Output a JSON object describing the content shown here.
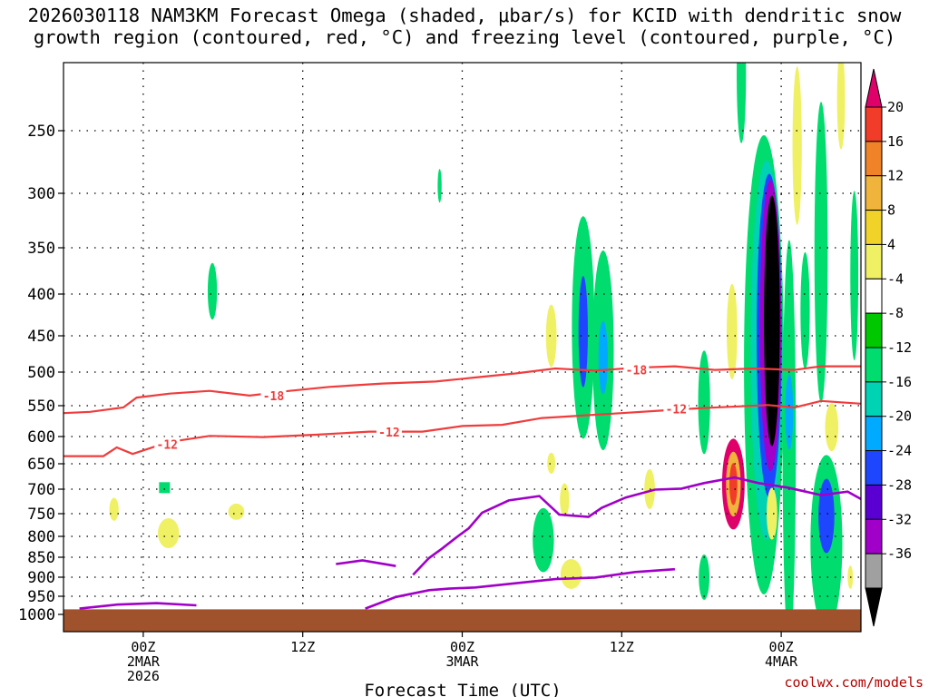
{
  "title_line1": "2026030118 NAM3KM Forecast Omega (shaded, μbar/s) for KCID with dendritic snow",
  "title_line2": "growth region (contoured, red, °C) and freezing level (contoured, purple, °C)",
  "credit": "coolwx.com/models",
  "chart_data": {
    "type": "heatmap",
    "xlabel": "Forecast Time (UTC)",
    "ylabel": "",
    "x_tick_labels": [
      {
        "hour": 6,
        "lines": [
          "00Z",
          "2MAR",
          "2026"
        ]
      },
      {
        "hour": 18,
        "lines": [
          "12Z"
        ]
      },
      {
        "hour": 30,
        "lines": [
          "00Z",
          "3MAR"
        ]
      },
      {
        "hour": 42,
        "lines": [
          "12Z"
        ]
      },
      {
        "hour": 54,
        "lines": [
          "00Z",
          "4MAR"
        ]
      }
    ],
    "xlim": [
      0,
      60
    ],
    "y_tick_labels": [
      "250",
      "300",
      "350",
      "400",
      "450",
      "500",
      "550",
      "600",
      "650",
      "700",
      "750",
      "800",
      "850",
      "900",
      "950",
      "1000"
    ],
    "ylim": [
      1000,
      200
    ],
    "grid": true,
    "colorbar": {
      "labels": [
        "20",
        "16",
        "12",
        "8",
        "4",
        "-4",
        "-8",
        "-12",
        "-16",
        "-20",
        "-24",
        "-28",
        "-32",
        "-36"
      ],
      "colors": [
        "#e0006a",
        "#f03c28",
        "#f08228",
        "#f0b43c",
        "#f0d228",
        "#f0f064",
        "#ffffff",
        "#00c800",
        "#00dc6e",
        "#00d2b4",
        "#00aaff",
        "#1e46ff",
        "#5a00d2",
        "#a000c8",
        "#a0a0a0",
        "#000000"
      ]
    },
    "contour_labels": [
      {
        "text": "-18",
        "hour": 15.8,
        "pressure": 535
      },
      {
        "text": "-18",
        "hour": 43.1,
        "pressure": 497
      },
      {
        "text": "-12",
        "hour": 7.8,
        "pressure": 614
      },
      {
        "text": "-12",
        "hour": 24.5,
        "pressure": 593
      },
      {
        "text": "-12",
        "hour": 46.1,
        "pressure": 555
      }
    ],
    "red_contours": [
      [
        [
          0,
          562
        ],
        [
          2,
          560
        ],
        [
          4.5,
          553
        ],
        [
          5.5,
          538
        ],
        [
          8,
          532
        ],
        [
          11,
          528
        ],
        [
          14,
          535
        ],
        [
          17,
          528
        ],
        [
          20,
          522
        ],
        [
          24,
          517
        ],
        [
          28,
          514
        ],
        [
          31,
          508
        ],
        [
          34,
          502
        ],
        [
          37,
          495
        ],
        [
          40,
          498
        ],
        [
          43,
          494
        ],
        [
          46,
          492
        ],
        [
          49,
          497
        ],
        [
          52,
          495
        ],
        [
          55,
          497
        ],
        [
          57,
          492
        ],
        [
          59,
          492
        ],
        [
          60,
          492
        ]
      ],
      [
        [
          0,
          636
        ],
        [
          3,
          636
        ],
        [
          4,
          620
        ],
        [
          5.2,
          632
        ],
        [
          6.8,
          619
        ],
        [
          8.5,
          608
        ],
        [
          11,
          599
        ],
        [
          15,
          601
        ],
        [
          19,
          597
        ],
        [
          23,
          592
        ],
        [
          27,
          592
        ],
        [
          30,
          583
        ],
        [
          33,
          581
        ],
        [
          36,
          570
        ],
        [
          39,
          566
        ],
        [
          42,
          562
        ],
        [
          45,
          558
        ],
        [
          48,
          554
        ],
        [
          51,
          551
        ],
        [
          53,
          549
        ],
        [
          55,
          553
        ],
        [
          57,
          543
        ],
        [
          60,
          547
        ]
      ]
    ],
    "purple_contours": [
      [
        [
          1.2,
          984
        ],
        [
          4,
          973
        ],
        [
          7,
          969
        ],
        [
          10,
          975
        ]
      ],
      [
        [
          22.7,
          984
        ],
        [
          25,
          952
        ],
        [
          27.5,
          934
        ],
        [
          29,
          930
        ],
        [
          31,
          927
        ],
        [
          34,
          916
        ],
        [
          37,
          905
        ],
        [
          40,
          901
        ],
        [
          43,
          887
        ],
        [
          46,
          880
        ]
      ],
      [
        [
          20.5,
          867
        ],
        [
          22.5,
          858
        ],
        [
          25,
          872
        ]
      ],
      [
        [
          26.3,
          894
        ],
        [
          27.5,
          852
        ],
        [
          28.5,
          829
        ],
        [
          29.5,
          804
        ],
        [
          30.5,
          782
        ],
        [
          31.5,
          748
        ],
        [
          33.5,
          723
        ],
        [
          35.8,
          714
        ],
        [
          37.3,
          752
        ],
        [
          39.5,
          757
        ],
        [
          40.5,
          738
        ],
        [
          42.3,
          717
        ],
        [
          44.5,
          701
        ],
        [
          46.5,
          699
        ],
        [
          48.2,
          688
        ],
        [
          50.5,
          677
        ],
        [
          52.3,
          688
        ],
        [
          54.5,
          697
        ],
        [
          57,
          712
        ],
        [
          59,
          705
        ],
        [
          60,
          720
        ]
      ]
    ],
    "omega_cells": [
      {
        "hour": 7.6,
        "pressure": 697,
        "value": -8,
        "shape": "square"
      },
      {
        "hour": 11.2,
        "pressure": 397,
        "value": -8,
        "rx": 0.35,
        "ry": 32
      },
      {
        "hour": 28.3,
        "pressure": 294,
        "value": -8,
        "rx": 0.15,
        "ry": 14
      },
      {
        "hour": 3.8,
        "pressure": 741,
        "value": 4,
        "rx": 0.35,
        "ry": 24
      },
      {
        "hour": 7.9,
        "pressure": 793,
        "value": 4,
        "rx": 0.8,
        "ry": 34
      },
      {
        "hour": 13.0,
        "pressure": 746,
        "value": 4,
        "rx": 0.6,
        "ry": 17
      },
      {
        "hour": 36.1,
        "pressure": 809,
        "value": -8,
        "rx": 0.8,
        "ry": 74
      },
      {
        "hour": 36.7,
        "pressure": 450,
        "value": 4,
        "rx": 0.4,
        "ry": 40
      },
      {
        "hour": 36.7,
        "pressure": 649,
        "value": 4,
        "rx": 0.3,
        "ry": 20
      },
      {
        "hour": 37.7,
        "pressure": 722,
        "value": 4,
        "rx": 0.35,
        "ry": 34
      },
      {
        "hour": 38.2,
        "pressure": 892,
        "value": 4,
        "rx": 0.8,
        "ry": 38
      },
      {
        "hour": 39.1,
        "pressure": 440,
        "value": -8,
        "rx": 0.85,
        "ry": 135
      },
      {
        "hour": 39.1,
        "pressure": 445,
        "value": -20,
        "rx": 0.35,
        "ry": 70
      },
      {
        "hour": 40.6,
        "pressure": 470,
        "value": -8,
        "rx": 0.8,
        "ry": 130
      },
      {
        "hour": 40.6,
        "pressure": 480,
        "value": -16,
        "rx": 0.35,
        "ry": 50
      },
      {
        "hour": 44.1,
        "pressure": 700,
        "value": 4,
        "rx": 0.4,
        "ry": 40
      },
      {
        "hour": 48.2,
        "pressure": 545,
        "value": -8,
        "rx": 0.45,
        "ry": 80
      },
      {
        "hour": 48.2,
        "pressure": 900,
        "value": -8,
        "rx": 0.4,
        "ry": 58
      },
      {
        "hour": 51.0,
        "pressure": 205,
        "value": -8,
        "rx": 0.35,
        "ry": 55
      },
      {
        "hour": 50.3,
        "pressure": 445,
        "value": 4,
        "rx": 0.4,
        "ry": 60
      },
      {
        "hour": 50.4,
        "pressure": 690,
        "value": 20,
        "rx": 0.85,
        "ry": 90
      },
      {
        "hour": 50.4,
        "pressure": 690,
        "value": 8,
        "rx": 0.55,
        "ry": 64
      },
      {
        "hour": 50.4,
        "pressure": 690,
        "value": 16,
        "rx": 0.3,
        "ry": 42
      },
      {
        "hour": 52.7,
        "pressure": 490,
        "value": -8,
        "rx": 1.5,
        "ry": 290
      },
      {
        "hour": 52.9,
        "pressure": 470,
        "value": -12,
        "rx": 1.2,
        "ry": 235
      },
      {
        "hour": 53.1,
        "pressure": 450,
        "value": -20,
        "rx": 0.95,
        "ry": 195
      },
      {
        "hour": 53.2,
        "pressure": 438,
        "value": -28,
        "rx": 0.8,
        "ry": 172
      },
      {
        "hour": 53.3,
        "pressure": 432,
        "value": -36,
        "rx": 0.6,
        "ry": 148
      },
      {
        "hour": 53.3,
        "pressure": 750,
        "value": 4,
        "rx": 0.4,
        "ry": 55
      },
      {
        "hour": 54.6,
        "pressure": 612,
        "value": -8,
        "rx": 0.5,
        "ry": 320
      },
      {
        "hour": 54.6,
        "pressure": 560,
        "value": -16,
        "rx": 0.3,
        "ry": 60
      },
      {
        "hour": 55.2,
        "pressure": 262,
        "value": 4,
        "rx": 0.35,
        "ry": 65
      },
      {
        "hour": 55.8,
        "pressure": 420,
        "value": -8,
        "rx": 0.35,
        "ry": 70
      },
      {
        "hour": 57.0,
        "pressure": 355,
        "value": -8,
        "rx": 0.5,
        "ry": 150
      },
      {
        "hour": 57.4,
        "pressure": 815,
        "value": -8,
        "rx": 1.2,
        "ry": 200
      },
      {
        "hour": 57.4,
        "pressure": 755,
        "value": -20,
        "rx": 0.6,
        "ry": 80
      },
      {
        "hour": 57.8,
        "pressure": 585,
        "value": 4,
        "rx": 0.5,
        "ry": 40
      },
      {
        "hour": 58.5,
        "pressure": 225,
        "value": 4,
        "rx": 0.3,
        "ry": 40
      },
      {
        "hour": 59.5,
        "pressure": 380,
        "value": -8,
        "rx": 0.3,
        "ry": 90
      },
      {
        "hour": 59.2,
        "pressure": 900,
        "value": 4,
        "rx": 0.2,
        "ry": 30
      }
    ],
    "terrain": {
      "color": "#a0522d",
      "pressure": 986
    }
  }
}
